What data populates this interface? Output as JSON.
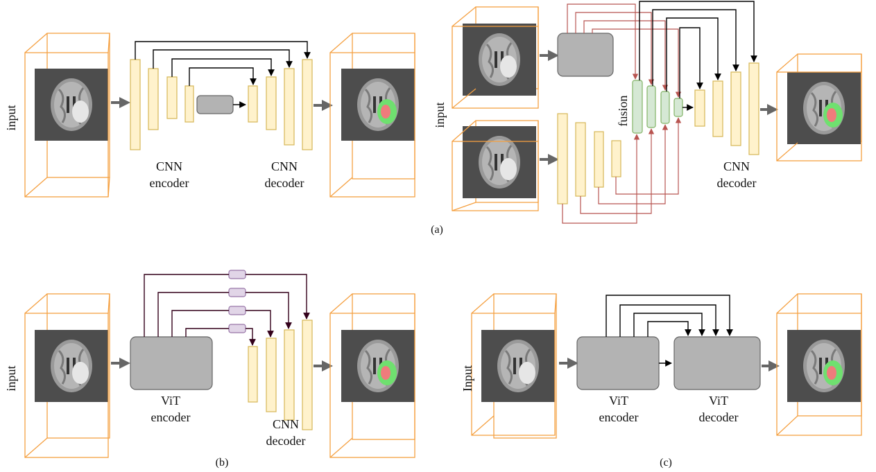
{
  "panels": {
    "a_left": {
      "input_label": "input",
      "encoder_label": [
        "CNN",
        "encoder"
      ],
      "decoder_label": [
        "CNN",
        "decoder"
      ]
    },
    "a_right": {
      "input_label": "input",
      "fusion_label": "fusion",
      "decoder_label": [
        "CNN",
        "decoder"
      ]
    },
    "b": {
      "input_label": "input",
      "encoder_label": [
        "ViT",
        "encoder"
      ],
      "decoder_label": [
        "CNN",
        "decoder"
      ]
    },
    "c": {
      "input_label": "Input",
      "encoder_label": [
        "ViT",
        "encoder"
      ],
      "decoder_label": [
        "ViT",
        "decoder"
      ]
    }
  },
  "captions": {
    "a": "(a)",
    "b": "(b)",
    "c": "(c)"
  },
  "colors": {
    "feature_fill": "#fff2cc",
    "feature_stroke": "#d6b656",
    "fusion_fill": "#d5e8d4",
    "fusion_stroke": "#82b366",
    "block_fill": "#b3b3b3",
    "token_fill": "#e1d5e7",
    "cube_stroke": "#f5a041",
    "skip_red": "#b85450",
    "skip_dark": "#33001a"
  }
}
